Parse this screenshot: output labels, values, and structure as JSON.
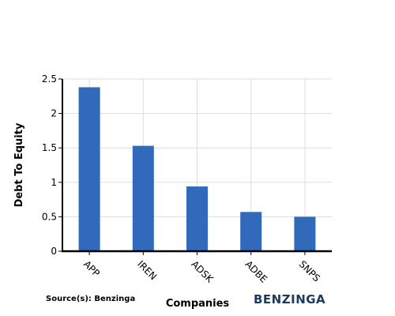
{
  "chart_data": {
    "type": "bar",
    "categories": [
      "APP",
      "IREN",
      "ADSK",
      "ADBE",
      "SNPS"
    ],
    "values": [
      2.38,
      1.53,
      0.94,
      0.57,
      0.5
    ],
    "xlabel": "Companies",
    "ylabel": "Debt To Equity",
    "ylim": [
      0,
      2.5
    ],
    "yticks": [
      "0",
      "0.5",
      "1",
      "1.5",
      "2",
      "2.5"
    ],
    "grid": true,
    "bar_color": "#3169bb",
    "source": "Source(s): Benzinga",
    "brand": "BENZINGA"
  }
}
